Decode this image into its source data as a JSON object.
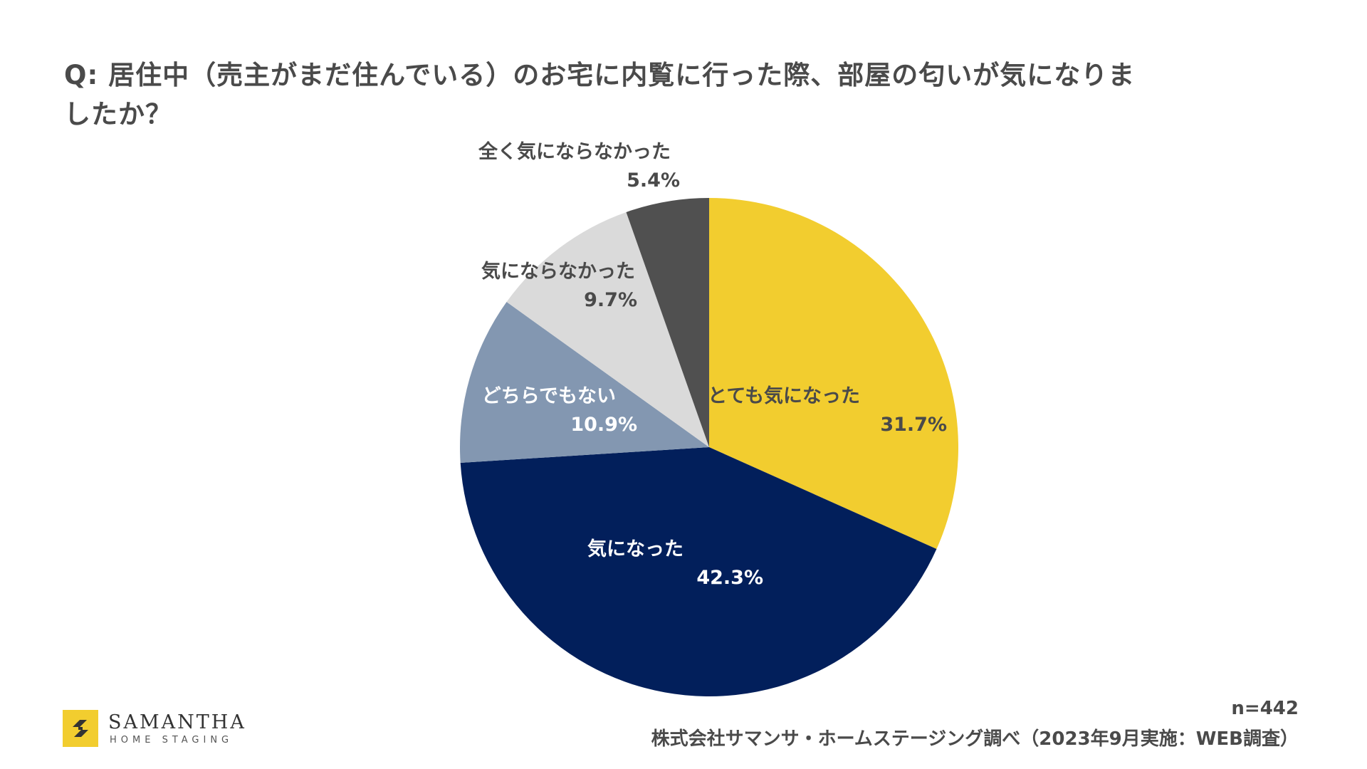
{
  "question": {
    "line1": "Q: 居住中（売主がまだ住んでいる）のお宅に内覧に行った際、部屋の匂いが気になりま",
    "line2": "したか？"
  },
  "chart_data": {
    "type": "pie",
    "title": "Q: 居住中（売主がまだ住んでいる）のお宅に内覧に行った際、部屋の匂いが気になりましたか？",
    "start": "12 o'clock",
    "direction": "clockwise",
    "slices": [
      {
        "label": "とても気になった",
        "value": 31.7,
        "value_label": "31.7%",
        "color": "#f2cd2f",
        "text_color": "#4a4a4a"
      },
      {
        "label": "気になった",
        "value": 42.3,
        "value_label": "42.3%",
        "color": "#021f5b",
        "text_color": "#ffffff"
      },
      {
        "label": "どちらでもない",
        "value": 10.9,
        "value_label": "10.9%",
        "color": "#8397b1",
        "text_color": "#ffffff"
      },
      {
        "label": "気にならなかった",
        "value": 9.7,
        "value_label": "9.7%",
        "color": "#dadada",
        "text_color": "#4a4a4a"
      },
      {
        "label": "全く気にならなかった",
        "value": 5.4,
        "value_label": "5.4%",
        "color": "#505050",
        "text_color": "#4a4a4a"
      }
    ]
  },
  "footer": {
    "n": "n=442",
    "source": "株式会社サマンサ・ホームステージング調べ（2023年9月実施：WEB調査）"
  },
  "logo": {
    "name": "SAMANTHA",
    "sub": "HOME STAGING",
    "color": "#f2cd2f"
  }
}
